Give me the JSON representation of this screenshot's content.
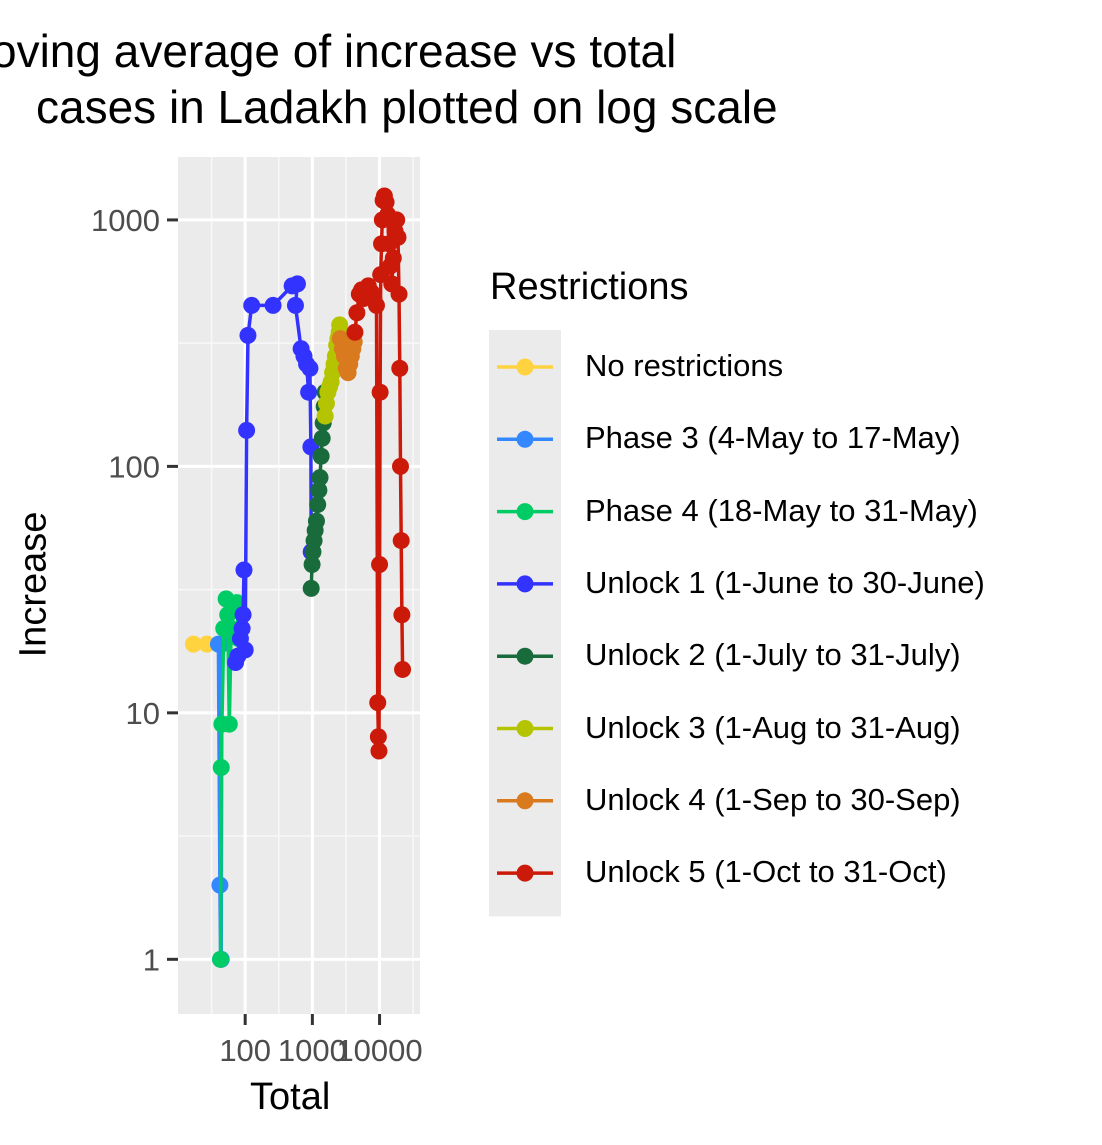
{
  "chart_data": {
    "type": "line",
    "title_lines": [
      "oving average of increase vs total",
      "cases in Ladakh plotted on log scale"
    ],
    "xlabel": "Total",
    "ylabel": "Increase",
    "x_scale": "log10",
    "y_scale": "log10",
    "xlim": [
      10,
      40000
    ],
    "ylim": [
      0.6,
      1800
    ],
    "x_ticks": [
      100,
      1000,
      10000
    ],
    "x_tick_labels": [
      "100",
      "1000",
      "10000"
    ],
    "y_ticks": [
      1,
      10,
      100,
      1000
    ],
    "y_tick_labels": [
      "1",
      "10",
      "100",
      "1000"
    ],
    "grid": true,
    "legend": {
      "title": "Restrictions",
      "placement": "right"
    },
    "series": [
      {
        "name": "No restrictions",
        "color": "#FFD23F",
        "points": [
          [
            17,
            19
          ],
          [
            27,
            19
          ]
        ]
      },
      {
        "name": "Phase 3 (4-May to 17-May)",
        "color": "#3388FF",
        "points": [
          [
            40,
            19
          ],
          [
            42,
            2
          ],
          [
            43,
            1
          ],
          [
            44,
            1
          ],
          [
            45,
            19
          ]
        ]
      },
      {
        "name": "Phase 4 (18-May to 31-May)",
        "color": "#00CC66",
        "points": [
          [
            43,
            1
          ],
          [
            44,
            6
          ],
          [
            45,
            9
          ],
          [
            48,
            22
          ],
          [
            52,
            29
          ],
          [
            55,
            25
          ],
          [
            58,
            9
          ],
          [
            62,
            22
          ],
          [
            68,
            27
          ],
          [
            75,
            28
          ],
          [
            80,
            20
          ]
        ]
      },
      {
        "name": "Unlock 1 (1-June to 30-June)",
        "color": "#3333FF",
        "points": [
          [
            72,
            16
          ],
          [
            78,
            17
          ],
          [
            85,
            20
          ],
          [
            90,
            22
          ],
          [
            93,
            25
          ],
          [
            96,
            38
          ],
          [
            100,
            18
          ],
          [
            105,
            140
          ],
          [
            110,
            340
          ],
          [
            125,
            450
          ],
          [
            260,
            450
          ],
          [
            500,
            540
          ],
          [
            600,
            550
          ],
          [
            560,
            450
          ],
          [
            680,
            300
          ],
          [
            750,
            280
          ],
          [
            820,
            260
          ],
          [
            880,
            200
          ],
          [
            920,
            250
          ],
          [
            950,
            120
          ],
          [
            960,
            45
          ]
        ]
      },
      {
        "name": "Unlock 2 (1-July to 31-July)",
        "color": "#1A6B3C",
        "points": [
          [
            960,
            32
          ],
          [
            990,
            40
          ],
          [
            1020,
            45
          ],
          [
            1060,
            50
          ],
          [
            1100,
            55
          ],
          [
            1150,
            60
          ],
          [
            1200,
            70
          ],
          [
            1250,
            80
          ],
          [
            1300,
            90
          ],
          [
            1350,
            110
          ],
          [
            1400,
            130
          ],
          [
            1450,
            150
          ],
          [
            1500,
            175
          ],
          [
            1550,
            200
          ]
        ]
      },
      {
        "name": "Unlock 3 (1-Aug to 31-Aug)",
        "color": "#B5C400",
        "points": [
          [
            1550,
            160
          ],
          [
            1620,
            180
          ],
          [
            1700,
            200
          ],
          [
            1800,
            210
          ],
          [
            1900,
            220
          ],
          [
            2000,
            240
          ],
          [
            2100,
            260
          ],
          [
            2200,
            280
          ],
          [
            2300,
            310
          ],
          [
            2400,
            330
          ],
          [
            2500,
            350
          ],
          [
            2550,
            375
          ]
        ]
      },
      {
        "name": "Unlock 4 (1-Sep to 30-Sep)",
        "color": "#D97A1F",
        "points": [
          [
            2600,
            330
          ],
          [
            2800,
            300
          ],
          [
            3000,
            280
          ],
          [
            3200,
            250
          ],
          [
            3400,
            240
          ],
          [
            3600,
            260
          ],
          [
            3800,
            280
          ],
          [
            4000,
            300
          ],
          [
            4200,
            320
          ]
        ]
      },
      {
        "name": "Unlock 5 (1-Oct to 31-Oct)",
        "color": "#CC1A0A",
        "points": [
          [
            4300,
            350
          ],
          [
            4600,
            420
          ],
          [
            5000,
            500
          ],
          [
            5400,
            520
          ],
          [
            5800,
            480
          ],
          [
            6200,
            520
          ],
          [
            6800,
            540
          ],
          [
            7500,
            510
          ],
          [
            8200,
            480
          ],
          [
            9000,
            450
          ],
          [
            9400,
            11
          ],
          [
            9600,
            8
          ],
          [
            9800,
            7
          ],
          [
            10000,
            40
          ],
          [
            10200,
            200
          ],
          [
            10400,
            600
          ],
          [
            10700,
            800
          ],
          [
            11000,
            1000
          ],
          [
            11300,
            1200
          ],
          [
            11800,
            1250
          ],
          [
            12500,
            1180
          ],
          [
            13200,
            1050
          ],
          [
            13800,
            800
          ],
          [
            14500,
            650
          ],
          [
            15200,
            550
          ],
          [
            16000,
            700
          ],
          [
            17000,
            900
          ],
          [
            18000,
            1000
          ],
          [
            18800,
            850
          ],
          [
            19500,
            500
          ],
          [
            20000,
            250
          ],
          [
            20500,
            100
          ],
          [
            21000,
            50
          ],
          [
            21500,
            25
          ],
          [
            22000,
            15
          ]
        ]
      }
    ]
  }
}
